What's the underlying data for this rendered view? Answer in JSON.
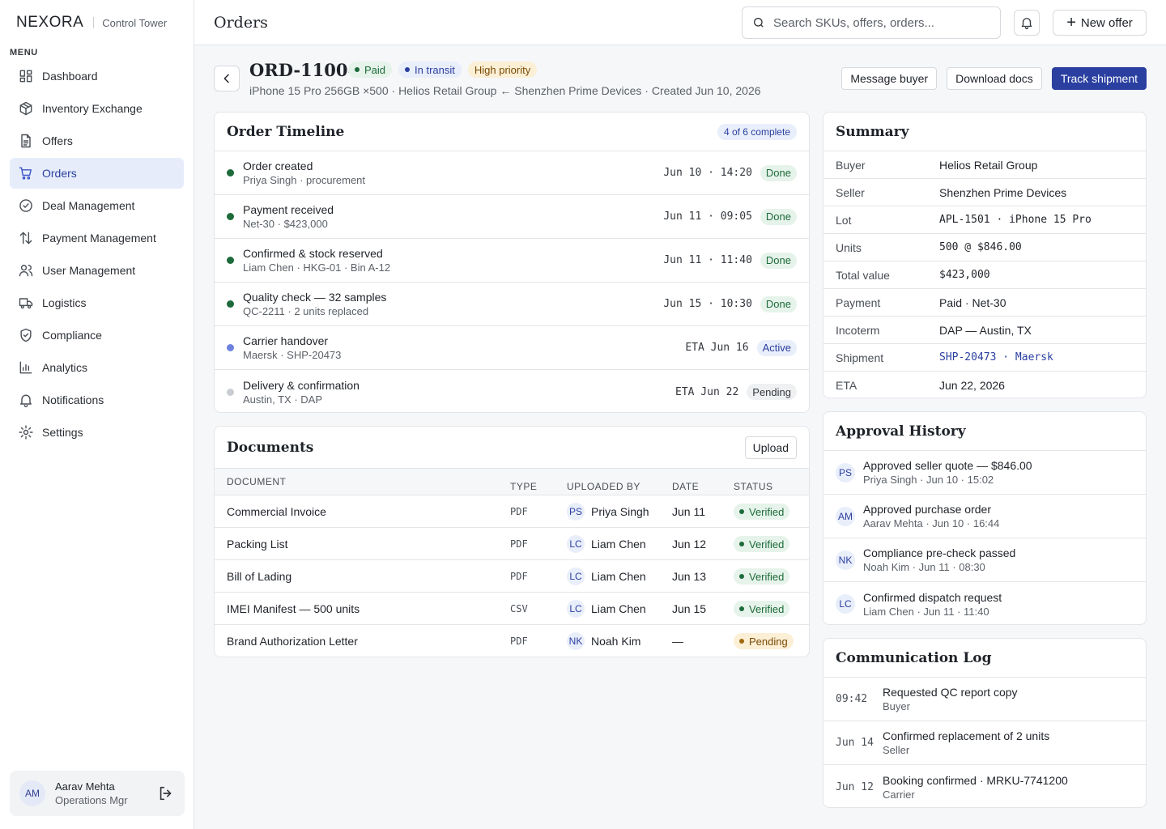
{
  "brand": {
    "name": "NEXORA",
    "product": "Control Tower"
  },
  "sidebar": {
    "menu_label": "MENU",
    "items": [
      {
        "label": "Dashboard",
        "icon": "dashboard-icon"
      },
      {
        "label": "Inventory Exchange",
        "icon": "box-icon"
      },
      {
        "label": "Offers",
        "icon": "document-icon"
      },
      {
        "label": "Orders",
        "icon": "cart-icon",
        "active": true
      },
      {
        "label": "Deal Management",
        "icon": "check-circle-icon"
      },
      {
        "label": "Payment Management",
        "icon": "arrows-icon"
      },
      {
        "label": "User Management",
        "icon": "users-icon"
      },
      {
        "label": "Logistics",
        "icon": "truck-icon"
      },
      {
        "label": "Compliance",
        "icon": "shield-icon"
      },
      {
        "label": "Analytics",
        "icon": "bar-chart-icon"
      },
      {
        "label": "Notifications",
        "icon": "bell-icon"
      },
      {
        "label": "Settings",
        "icon": "gear-icon"
      }
    ],
    "user": {
      "initials": "AM",
      "name": "Aarav Mehta",
      "role": "Operations Mgr"
    }
  },
  "header": {
    "title": "Orders",
    "search_placeholder": "Search SKUs, offers, orders...",
    "new_offer_label": "New offer"
  },
  "order": {
    "id": "ORD-11004",
    "badges": {
      "paid": "Paid",
      "transit": "In transit",
      "priority": "High priority"
    },
    "meta": "iPhone 15 Pro 256GB ×500 · Helios Retail Group ← Shenzhen Prime Devices · Created Jun 10, 2026",
    "actions": {
      "message": "Message buyer",
      "download": "Download docs",
      "track": "Track shipment"
    }
  },
  "timeline": {
    "title": "Order Timeline",
    "progress": "4 of 6 complete",
    "steps": [
      {
        "title": "Order created",
        "sub": "Priya Singh · procurement",
        "time": "Jun 10 · 14:20",
        "status": "Done",
        "state": "done"
      },
      {
        "title": "Payment received",
        "sub": "Net-30 · $423,000",
        "time": "Jun 11 · 09:05",
        "status": "Done",
        "state": "done"
      },
      {
        "title": "Confirmed & stock reserved",
        "sub": "Liam Chen · HKG-01 · Bin A-12",
        "time": "Jun 11 · 11:40",
        "status": "Done",
        "state": "done"
      },
      {
        "title": "Quality check — 32 samples",
        "sub": "QC-2211 · 2 units replaced",
        "time": "Jun 15 · 10:30",
        "status": "Done",
        "state": "done"
      },
      {
        "title": "Carrier handover",
        "sub": "Maersk · SHP-20473",
        "time": "ETA Jun 16",
        "status": "Active",
        "state": "active"
      },
      {
        "title": "Delivery & confirmation",
        "sub": "Austin, TX · DAP",
        "time": "ETA Jun 22",
        "status": "Pending",
        "state": "pending"
      }
    ]
  },
  "documents": {
    "title": "Documents",
    "upload_label": "Upload",
    "columns": [
      "DOCUMENT",
      "TYPE",
      "UPLOADED BY",
      "DATE",
      "STATUS"
    ],
    "rows": [
      {
        "name": "Commercial Invoice",
        "type": "PDF",
        "initials": "PS",
        "by": "Priya Singh",
        "date": "Jun 11",
        "status": "Verified",
        "state": "ok"
      },
      {
        "name": "Packing List",
        "type": "PDF",
        "initials": "LC",
        "by": "Liam Chen",
        "date": "Jun 12",
        "status": "Verified",
        "state": "ok"
      },
      {
        "name": "Bill of Lading",
        "type": "PDF",
        "initials": "LC",
        "by": "Liam Chen",
        "date": "Jun 13",
        "status": "Verified",
        "state": "ok"
      },
      {
        "name": "IMEI Manifest — 500 units",
        "type": "CSV",
        "initials": "LC",
        "by": "Liam Chen",
        "date": "Jun 15",
        "status": "Verified",
        "state": "ok"
      },
      {
        "name": "Brand Authorization Letter",
        "type": "PDF",
        "initials": "NK",
        "by": "Noah Kim",
        "date": "—",
        "status": "Pending",
        "state": "pending"
      }
    ]
  },
  "summary": {
    "title": "Summary",
    "rows": [
      {
        "key": "Buyer",
        "value": "Helios Retail Group"
      },
      {
        "key": "Seller",
        "value": "Shenzhen Prime Devices"
      },
      {
        "key": "Lot",
        "value": "APL-1501 · iPhone 15 Pro",
        "mono": true
      },
      {
        "key": "Units",
        "value": "500 @ $846.00",
        "mono": true
      },
      {
        "key": "Total value",
        "value": "$423,000",
        "mono": true
      },
      {
        "key": "Payment",
        "value": "Paid · Net-30"
      },
      {
        "key": "Incoterm",
        "value": "DAP — Austin, TX"
      },
      {
        "key": "Shipment",
        "value": "SHP-20473 · Maersk",
        "mono": true,
        "link": true
      },
      {
        "key": "ETA",
        "value": "Jun 22, 2026"
      }
    ]
  },
  "approval": {
    "title": "Approval History",
    "rows": [
      {
        "initials": "PS",
        "title": "Approved seller quote — $846.00",
        "sub": "Priya Singh · Jun 10 · 15:02"
      },
      {
        "initials": "AM",
        "title": "Approved purchase order",
        "sub": "Aarav Mehta · Jun 10 · 16:44"
      },
      {
        "initials": "NK",
        "title": "Compliance pre-check passed",
        "sub": "Noah Kim · Jun 11 · 08:30"
      },
      {
        "initials": "LC",
        "title": "Confirmed dispatch request",
        "sub": "Liam Chen · Jun 11 · 11:40"
      }
    ]
  },
  "comms": {
    "title": "Communication Log",
    "rows": [
      {
        "time": "09:42",
        "title": "Requested QC report copy",
        "sub": "Buyer"
      },
      {
        "time": "Jun 14",
        "title": "Confirmed replacement of 2 units",
        "sub": "Seller"
      },
      {
        "time": "Jun 12",
        "title": "Booking confirmed · MRKU-7741200",
        "sub": "Carrier"
      }
    ]
  },
  "colors": {
    "accent": "#2a3fa0",
    "done": "#1d6b3a",
    "active": "#6f82e0",
    "pending": "#c9ccd1"
  }
}
